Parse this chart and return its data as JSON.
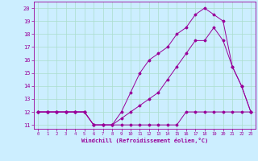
{
  "xlabel": "Windchill (Refroidissement éolien,°C)",
  "background_color": "#cceeff",
  "grid_color": "#aaddcc",
  "line_color": "#990099",
  "xlim": [
    -0.5,
    23.5
  ],
  "ylim": [
    10.7,
    20.5
  ],
  "yticks": [
    11,
    12,
    13,
    14,
    15,
    16,
    17,
    18,
    19,
    20
  ],
  "xticks": [
    0,
    1,
    2,
    3,
    4,
    5,
    6,
    7,
    8,
    9,
    10,
    11,
    12,
    13,
    14,
    15,
    16,
    17,
    18,
    19,
    20,
    21,
    22,
    23
  ],
  "line1_x": [
    0,
    1,
    2,
    3,
    4,
    5,
    6,
    7,
    8,
    9,
    10,
    11,
    12,
    13,
    14,
    15,
    16,
    17,
    18,
    19,
    20,
    21,
    22,
    23
  ],
  "line1_y": [
    12,
    12,
    12,
    12,
    12,
    12,
    11,
    11,
    11,
    11,
    11,
    11,
    11,
    11,
    11,
    11,
    12,
    12,
    12,
    12,
    12,
    12,
    12,
    12
  ],
  "line2_x": [
    0,
    1,
    2,
    3,
    4,
    5,
    6,
    7,
    8,
    9,
    10,
    11,
    12,
    13,
    14,
    15,
    16,
    17,
    18,
    19,
    20,
    21,
    22,
    23
  ],
  "line2_y": [
    12,
    12,
    12,
    12,
    12,
    12,
    11,
    11,
    11,
    11.5,
    12,
    12.5,
    13,
    13.5,
    14.5,
    15.5,
    16.5,
    17.5,
    17.5,
    18.5,
    17.5,
    15.5,
    14,
    12
  ],
  "line3_x": [
    0,
    1,
    2,
    3,
    4,
    5,
    6,
    7,
    8,
    9,
    10,
    11,
    12,
    13,
    14,
    15,
    16,
    17,
    18,
    19,
    20,
    21,
    22,
    23
  ],
  "line3_y": [
    12,
    12,
    12,
    12,
    12,
    12,
    11,
    11,
    11,
    12,
    13.5,
    15,
    16,
    16.5,
    17,
    18,
    18.5,
    19.5,
    20,
    19.5,
    19,
    15.5,
    14,
    12
  ]
}
